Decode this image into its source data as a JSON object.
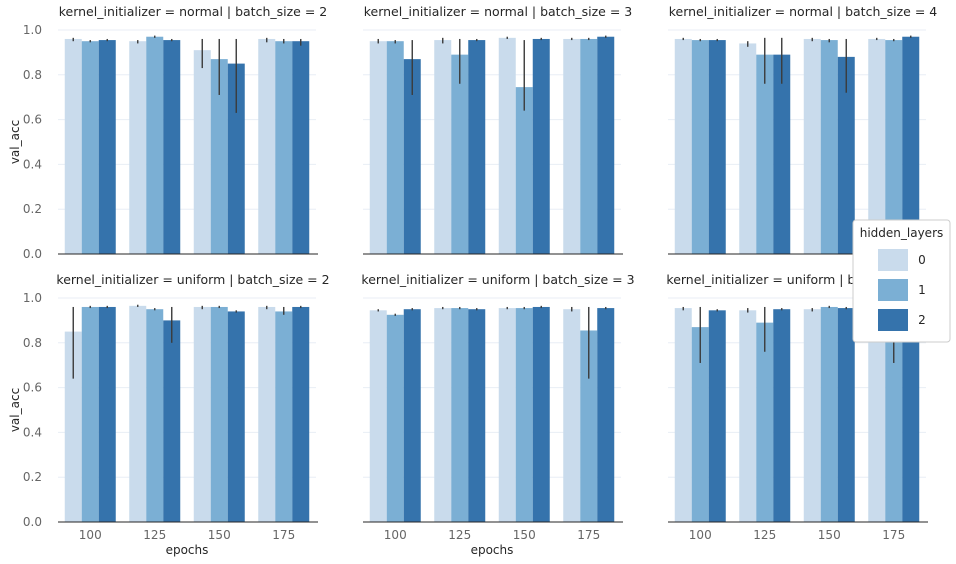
{
  "colors": {
    "hidden_0": "#c9dbec",
    "hidden_1": "#7bafd4",
    "hidden_2": "#3573ac",
    "error_bar": "#3a3a3a",
    "grid": "#e8eef5",
    "axis": "#262626"
  },
  "chart_data": {
    "type": "bar",
    "facet_row_var": "kernel_initializer",
    "facet_col_var": "batch_size",
    "xlabel": "epochs",
    "ylabel": "val_acc",
    "ylim": [
      0,
      1
    ],
    "yticks": [
      "0.0",
      "0.2",
      "0.4",
      "0.6",
      "0.8",
      "1.0"
    ],
    "categories": [
      "100",
      "125",
      "150",
      "175"
    ],
    "grid": "horizontal, light",
    "legend": {
      "title": "hidden_layers",
      "entries": [
        "0",
        "1",
        "2"
      ],
      "placement": "right"
    },
    "panels": [
      {
        "title": "kernel_initializer = normal | batch_size = 2",
        "series": [
          {
            "name": "0",
            "values": [
              0.96,
              0.95,
              0.91,
              0.96
            ],
            "err": [
              [
                0.95,
                0.965
              ],
              [
                0.94,
                0.955
              ],
              [
                0.83,
                0.96
              ],
              [
                0.945,
                0.965
              ]
            ]
          },
          {
            "name": "1",
            "values": [
              0.95,
              0.97,
              0.87,
              0.95
            ],
            "err": [
              [
                0.945,
                0.955
              ],
              [
                0.965,
                0.975
              ],
              [
                0.71,
                0.96
              ],
              [
                0.94,
                0.96
              ]
            ]
          },
          {
            "name": "2",
            "values": [
              0.955,
              0.955,
              0.85,
              0.95
            ],
            "err": [
              [
                0.95,
                0.96
              ],
              [
                0.95,
                0.96
              ],
              [
                0.63,
                0.96
              ],
              [
                0.93,
                0.96
              ]
            ]
          }
        ]
      },
      {
        "title": "kernel_initializer = normal | batch_size = 3",
        "series": [
          {
            "name": "0",
            "values": [
              0.95,
              0.955,
              0.965,
              0.96
            ],
            "err": [
              [
                0.94,
                0.96
              ],
              [
                0.94,
                0.965
              ],
              [
                0.96,
                0.97
              ],
              [
                0.955,
                0.965
              ]
            ]
          },
          {
            "name": "1",
            "values": [
              0.95,
              0.89,
              0.745,
              0.96
            ],
            "err": [
              [
                0.94,
                0.955
              ],
              [
                0.76,
                0.96
              ],
              [
                0.64,
                0.955
              ],
              [
                0.955,
                0.965
              ]
            ]
          },
          {
            "name": "2",
            "values": [
              0.87,
              0.955,
              0.96,
              0.97
            ],
            "err": [
              [
                0.71,
                0.955
              ],
              [
                0.95,
                0.96
              ],
              [
                0.955,
                0.965
              ],
              [
                0.965,
                0.975
              ]
            ]
          }
        ]
      },
      {
        "title": "kernel_initializer = normal | batch_size = 4",
        "series": [
          {
            "name": "0",
            "values": [
              0.96,
              0.94,
              0.96,
              0.96
            ],
            "err": [
              [
                0.955,
                0.965
              ],
              [
                0.925,
                0.95
              ],
              [
                0.95,
                0.965
              ],
              [
                0.955,
                0.965
              ]
            ]
          },
          {
            "name": "1",
            "values": [
              0.955,
              0.89,
              0.955,
              0.955
            ],
            "err": [
              [
                0.95,
                0.96
              ],
              [
                0.76,
                0.965
              ],
              [
                0.945,
                0.96
              ],
              [
                0.95,
                0.96
              ]
            ]
          },
          {
            "name": "2",
            "values": [
              0.955,
              0.89,
              0.88,
              0.97
            ],
            "err": [
              [
                0.95,
                0.96
              ],
              [
                0.76,
                0.965
              ],
              [
                0.72,
                0.96
              ],
              [
                0.965,
                0.975
              ]
            ]
          }
        ]
      },
      {
        "title": "kernel_initializer = uniform | batch_size = 2",
        "series": [
          {
            "name": "0",
            "values": [
              0.85,
              0.965,
              0.96,
              0.96
            ],
            "err": [
              [
                0.64,
                0.96
              ],
              [
                0.96,
                0.97
              ],
              [
                0.95,
                0.965
              ],
              [
                0.95,
                0.965
              ]
            ]
          },
          {
            "name": "1",
            "values": [
              0.96,
              0.95,
              0.96,
              0.94
            ],
            "err": [
              [
                0.955,
                0.965
              ],
              [
                0.945,
                0.955
              ],
              [
                0.955,
                0.965
              ],
              [
                0.925,
                0.96
              ]
            ]
          },
          {
            "name": "2",
            "values": [
              0.96,
              0.9,
              0.94,
              0.96
            ],
            "err": [
              [
                0.955,
                0.965
              ],
              [
                0.8,
                0.96
              ],
              [
                0.935,
                0.945
              ],
              [
                0.955,
                0.965
              ]
            ]
          }
        ]
      },
      {
        "title": "kernel_initializer = uniform | batch_size = 3",
        "series": [
          {
            "name": "0",
            "values": [
              0.945,
              0.955,
              0.955,
              0.95
            ],
            "err": [
              [
                0.94,
                0.95
              ],
              [
                0.95,
                0.96
              ],
              [
                0.95,
                0.96
              ],
              [
                0.94,
                0.96
              ]
            ]
          },
          {
            "name": "1",
            "values": [
              0.925,
              0.955,
              0.955,
              0.855
            ],
            "err": [
              [
                0.92,
                0.93
              ],
              [
                0.95,
                0.96
              ],
              [
                0.95,
                0.96
              ],
              [
                0.64,
                0.96
              ]
            ]
          },
          {
            "name": "2",
            "values": [
              0.95,
              0.95,
              0.96,
              0.955
            ],
            "err": [
              [
                0.945,
                0.955
              ],
              [
                0.945,
                0.955
              ],
              [
                0.955,
                0.965
              ],
              [
                0.95,
                0.96
              ]
            ]
          }
        ]
      },
      {
        "title": "kernel_initializer = uniform | batch_size = 4",
        "series": [
          {
            "name": "0",
            "values": [
              0.955,
              0.945,
              0.95,
              0.955
            ],
            "err": [
              [
                0.945,
                0.96
              ],
              [
                0.935,
                0.955
              ],
              [
                0.94,
                0.955
              ],
              [
                0.95,
                0.96
              ]
            ]
          },
          {
            "name": "1",
            "values": [
              0.87,
              0.89,
              0.96,
              0.87
            ],
            "err": [
              [
                0.71,
                0.96
              ],
              [
                0.76,
                0.96
              ],
              [
                0.955,
                0.965
              ],
              [
                0.71,
                0.96
              ]
            ]
          },
          {
            "name": "2",
            "values": [
              0.945,
              0.95,
              0.955,
              0.955
            ],
            "err": [
              [
                0.94,
                0.95
              ],
              [
                0.945,
                0.955
              ],
              [
                0.95,
                0.96
              ],
              [
                0.95,
                0.96
              ]
            ]
          }
        ]
      }
    ]
  }
}
